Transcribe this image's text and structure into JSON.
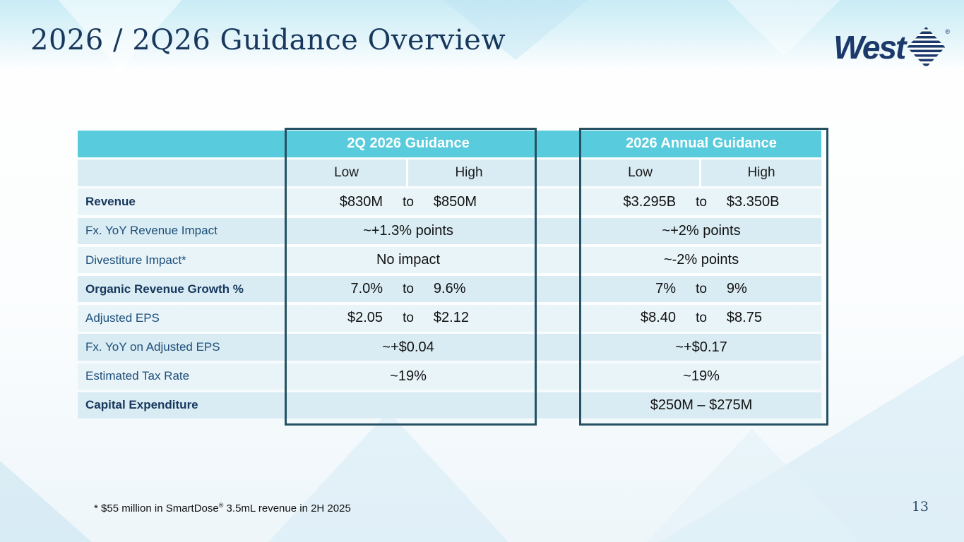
{
  "slide": {
    "title": "2026 / 2Q26 Guidance Overview",
    "page_number": "13",
    "footnote": {
      "prefix": "* $55 million in SmartDose",
      "reg_mark": "®",
      "suffix": " 3.5mL revenue in 2H 2025"
    }
  },
  "logo": {
    "wordmark": "West",
    "reg_mark": "®",
    "diamond_icon": "striped-diamond"
  },
  "colors": {
    "header_fill": "#58cbdc",
    "group_border": "#255163",
    "stripe_light": "#e9f4f9",
    "stripe_dark": "#d9ecf3",
    "label_navy": "#1d4e79",
    "title_navy": "#17375c",
    "logo_navy": "#1b3a6b"
  },
  "table": {
    "group_headers": [
      {
        "label": "2Q 2026 Guidance"
      },
      {
        "label": "2026 Annual Guidance"
      }
    ],
    "sub_headers": {
      "low": "Low",
      "high": "High"
    },
    "range_connector": "to",
    "rows": [
      {
        "label": "Revenue",
        "bold": true,
        "q2": {
          "type": "range",
          "low": "$830M",
          "high": "$850M"
        },
        "annual": {
          "type": "range",
          "low": "$3.295B",
          "high": "$3.350B"
        }
      },
      {
        "label": "Fx. YoY Revenue Impact",
        "bold": false,
        "q2": {
          "type": "single",
          "value": "~+1.3% points"
        },
        "annual": {
          "type": "single",
          "value": "~+2% points"
        }
      },
      {
        "label": "Divestiture Impact*",
        "bold": false,
        "q2": {
          "type": "single",
          "value": "No impact"
        },
        "annual": {
          "type": "single",
          "value": "~-2% points"
        }
      },
      {
        "label": "Organic Revenue Growth %",
        "bold": true,
        "q2": {
          "type": "range",
          "low": "7.0%",
          "high": "9.6%"
        },
        "annual": {
          "type": "range",
          "low": "7%",
          "high": "9%"
        }
      },
      {
        "label": "Adjusted EPS",
        "bold": false,
        "q2": {
          "type": "range",
          "low": "$2.05",
          "high": "$2.12"
        },
        "annual": {
          "type": "range",
          "low": "$8.40",
          "high": "$8.75"
        }
      },
      {
        "label": "Fx. YoY on Adjusted EPS",
        "bold": false,
        "q2": {
          "type": "single",
          "value": "~+$0.04"
        },
        "annual": {
          "type": "single",
          "value": "~+$0.17"
        }
      },
      {
        "label": "Estimated Tax Rate",
        "bold": false,
        "q2": {
          "type": "single",
          "value": "~19%"
        },
        "annual": {
          "type": "single",
          "value": "~19%"
        }
      },
      {
        "label": "Capital Expenditure",
        "bold": true,
        "q2": {
          "type": "single",
          "value": ""
        },
        "annual": {
          "type": "single",
          "value": "$250M – $275M"
        }
      }
    ]
  }
}
